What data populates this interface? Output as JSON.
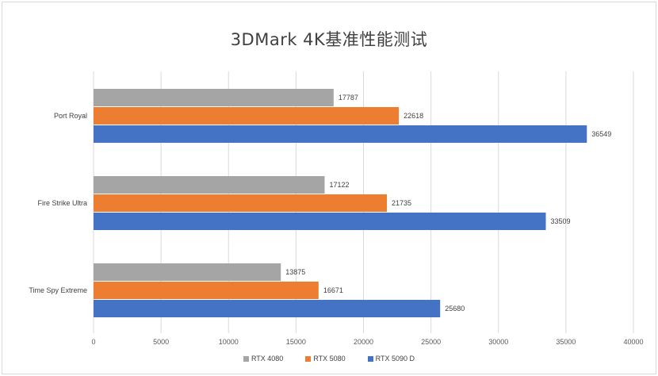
{
  "chart_data": {
    "type": "bar",
    "orientation": "horizontal",
    "title": "3DMark 4K基准性能测试",
    "categories": [
      "Port Royal",
      "Fire Strike Ultra",
      "Time Spy Extreme"
    ],
    "series": [
      {
        "name": "RTX 4080",
        "color": "#a5a5a5",
        "values": [
          17787,
          17122,
          13875
        ]
      },
      {
        "name": "RTX 5080",
        "color": "#ed7d31",
        "values": [
          22618,
          21735,
          16671
        ]
      },
      {
        "name": "RTX 5090 D",
        "color": "#4472c4",
        "values": [
          36549,
          33509,
          25680
        ]
      }
    ],
    "xlim": [
      0,
      40000
    ],
    "xticks": [
      "0",
      "5000",
      "10000",
      "15000",
      "20000",
      "25000",
      "30000",
      "35000",
      "40000"
    ],
    "grid": "vertical",
    "legend_position": "bottom"
  }
}
